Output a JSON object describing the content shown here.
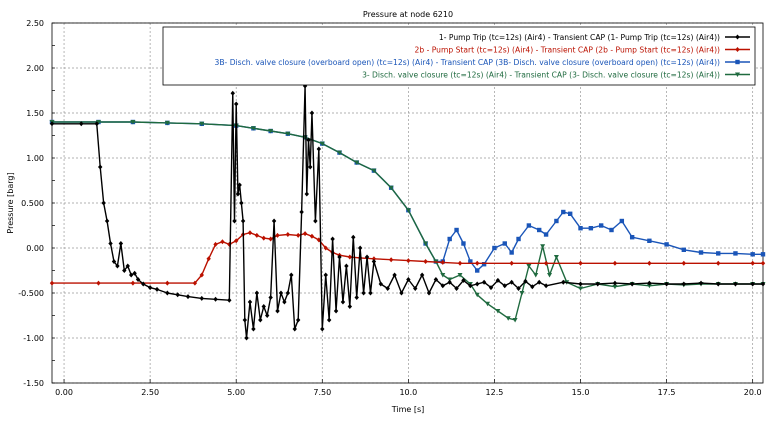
{
  "chart_data": {
    "type": "line",
    "title": "Pressure at node 6210",
    "xlabel": "Time [s]",
    "ylabel": "Pressure [barg]",
    "xlim": [
      -0.35,
      20.3
    ],
    "ylim": [
      -1.5,
      2.5
    ],
    "x_ticks": [
      0,
      2.5,
      5,
      7.5,
      10,
      12.5,
      15,
      17.5,
      20
    ],
    "x_tick_labels": [
      "0.00",
      "2.50",
      "5.00",
      "7.50",
      "10.0",
      "12.5",
      "15.0",
      "17.5",
      "20.0"
    ],
    "y_ticks": [
      2.5,
      2.0,
      1.5,
      1.0,
      0.5,
      0,
      -0.5,
      -1.0,
      -1.5
    ],
    "y_tick_labels": [
      "2.50",
      "2.00",
      "1.50",
      "1.00",
      "0.500",
      "0.00",
      "-0.500",
      "-1.00",
      "-1.50"
    ],
    "grid": true,
    "legend_position": "top-right",
    "series": [
      {
        "name": "1- Pump Trip (tc=12s) (Air4) - Transient CAP (1- Pump Trip (tc=12s) (Air4))",
        "color": "#000000",
        "marker": "diamond",
        "x": [
          -0.35,
          0.5,
          0.95,
          1.05,
          1.15,
          1.25,
          1.35,
          1.45,
          1.55,
          1.65,
          1.75,
          1.85,
          1.95,
          2.05,
          2.15,
          2.3,
          2.5,
          2.7,
          3.0,
          3.3,
          3.6,
          4.0,
          4.4,
          4.8,
          4.9,
          4.95,
          5.0,
          5.05,
          5.1,
          5.15,
          5.2,
          5.25,
          5.3,
          5.4,
          5.5,
          5.6,
          5.7,
          5.8,
          5.9,
          6.0,
          6.1,
          6.2,
          6.3,
          6.4,
          6.5,
          6.6,
          6.7,
          6.8,
          6.9,
          7.0,
          7.05,
          7.1,
          7.15,
          7.2,
          7.3,
          7.4,
          7.5,
          7.6,
          7.7,
          7.8,
          7.9,
          8.0,
          8.1,
          8.2,
          8.3,
          8.4,
          8.5,
          8.6,
          8.7,
          8.8,
          8.9,
          9.0,
          9.2,
          9.4,
          9.6,
          9.8,
          10.0,
          10.2,
          10.4,
          10.6,
          10.8,
          11.0,
          11.2,
          11.4,
          11.6,
          11.8,
          12.0,
          12.2,
          12.4,
          12.6,
          12.8,
          13.0,
          13.2,
          13.4,
          13.6,
          13.8,
          14.0,
          14.5,
          15.0,
          15.5,
          16.0,
          16.5,
          17.0,
          17.5,
          18.0,
          18.5,
          19.0,
          19.5,
          20.0,
          20.3
        ],
        "y": [
          1.38,
          1.38,
          1.38,
          0.9,
          0.5,
          0.3,
          0.05,
          -0.15,
          -0.2,
          0.05,
          -0.25,
          -0.2,
          -0.3,
          -0.28,
          -0.35,
          -0.4,
          -0.44,
          -0.46,
          -0.5,
          -0.52,
          -0.54,
          -0.56,
          -0.57,
          -0.58,
          1.72,
          0.3,
          1.6,
          0.6,
          0.7,
          0.5,
          0.3,
          -0.8,
          -1.0,
          -0.6,
          -0.9,
          -0.5,
          -0.8,
          -0.65,
          -0.75,
          -0.55,
          0.3,
          -0.7,
          -0.5,
          -0.6,
          -0.5,
          -0.3,
          -0.9,
          -0.8,
          0.4,
          1.8,
          0.6,
          1.2,
          0.9,
          1.5,
          0.3,
          1.1,
          -0.9,
          -0.3,
          -0.8,
          0.1,
          -0.7,
          -0.1,
          -0.6,
          -0.2,
          -0.65,
          0.12,
          -0.55,
          0.0,
          -0.5,
          -0.1,
          -0.5,
          -0.15,
          -0.4,
          -0.45,
          -0.3,
          -0.5,
          -0.35,
          -0.45,
          -0.3,
          -0.5,
          -0.35,
          -0.42,
          -0.38,
          -0.45,
          -0.36,
          -0.42,
          -0.4,
          -0.38,
          -0.44,
          -0.36,
          -0.42,
          -0.38,
          -0.45,
          -0.37,
          -0.43,
          -0.38,
          -0.42,
          -0.38,
          -0.4,
          -0.4,
          -0.39,
          -0.4,
          -0.39,
          -0.4,
          -0.4,
          -0.39,
          -0.4,
          -0.4,
          -0.4,
          -0.4
        ]
      },
      {
        "name": "2b - Pump Start (tc=12s) (Air4) - Transient CAP (2b - Pump Start (tc=12s) (Air4))",
        "color": "#bb1100",
        "marker": "diamond",
        "x": [
          -0.35,
          1.0,
          2.0,
          3.0,
          3.8,
          4.0,
          4.2,
          4.4,
          4.6,
          4.8,
          5.0,
          5.2,
          5.4,
          5.6,
          5.8,
          6.0,
          6.2,
          6.5,
          6.8,
          7.0,
          7.2,
          7.4,
          7.6,
          7.8,
          8.0,
          8.3,
          8.6,
          9.0,
          9.5,
          10.0,
          10.5,
          11.0,
          11.5,
          12.0,
          13.0,
          14.0,
          15.0,
          16.0,
          17.0,
          18.0,
          19.0,
          20.0,
          20.3
        ],
        "y": [
          -0.39,
          -0.39,
          -0.39,
          -0.39,
          -0.39,
          -0.3,
          -0.12,
          0.04,
          0.07,
          0.04,
          0.08,
          0.15,
          0.17,
          0.14,
          0.11,
          0.1,
          0.14,
          0.15,
          0.14,
          0.16,
          0.13,
          0.09,
          0.0,
          -0.05,
          -0.08,
          -0.1,
          -0.11,
          -0.12,
          -0.13,
          -0.14,
          -0.15,
          -0.16,
          -0.17,
          -0.17,
          -0.17,
          -0.17,
          -0.17,
          -0.17,
          -0.17,
          -0.17,
          -0.17,
          -0.17,
          -0.17
        ]
      },
      {
        "name": "3B- Disch. valve closure (overboard open) (tc=12s) (Air4) - Transient CAP (3B- Disch. valve closure (overboard open) (tc=12s) (Air4))",
        "color": "#1a55b8",
        "marker": "square",
        "x": [
          -0.35,
          1.0,
          2.0,
          3.0,
          4.0,
          5.0,
          5.5,
          6.0,
          6.5,
          7.0,
          7.5,
          8.0,
          8.5,
          9.0,
          9.5,
          10.0,
          10.5,
          10.8,
          11.0,
          11.2,
          11.4,
          11.6,
          11.8,
          12.0,
          12.2,
          12.5,
          12.8,
          13.0,
          13.2,
          13.5,
          13.8,
          14.0,
          14.3,
          14.5,
          14.7,
          15.0,
          15.3,
          15.6,
          15.9,
          16.2,
          16.5,
          17.0,
          17.5,
          18.0,
          18.5,
          19.0,
          19.5,
          20.0,
          20.3
        ],
        "y": [
          1.4,
          1.4,
          1.4,
          1.39,
          1.38,
          1.36,
          1.33,
          1.3,
          1.27,
          1.23,
          1.16,
          1.06,
          0.95,
          0.86,
          0.67,
          0.42,
          0.05,
          -0.15,
          -0.15,
          0.1,
          0.2,
          0.05,
          -0.15,
          -0.25,
          -0.18,
          0.0,
          0.05,
          -0.05,
          0.1,
          0.25,
          0.2,
          0.15,
          0.3,
          0.4,
          0.38,
          0.22,
          0.22,
          0.25,
          0.2,
          0.3,
          0.12,
          0.08,
          0.04,
          -0.02,
          -0.05,
          -0.06,
          -0.06,
          -0.07,
          -0.07
        ]
      },
      {
        "name": "3- Disch. valve closure (tc=12s) (Air4) - Transient CAP (3- Disch. valve closure (tc=12s) (Air4))",
        "color": "#1f6a3f",
        "marker": "triangle",
        "x": [
          -0.35,
          1.0,
          2.0,
          3.0,
          4.0,
          5.0,
          5.5,
          6.0,
          6.5,
          7.0,
          7.5,
          8.0,
          8.5,
          9.0,
          9.5,
          10.0,
          10.5,
          10.8,
          11.0,
          11.2,
          11.5,
          11.8,
          12.0,
          12.3,
          12.6,
          12.9,
          13.1,
          13.3,
          13.5,
          13.7,
          13.9,
          14.1,
          14.3,
          14.6,
          15.0,
          15.5,
          16.0,
          16.5,
          17.0,
          17.5,
          18.0,
          18.5,
          19.0,
          19.5,
          20.0,
          20.3
        ],
        "y": [
          1.4,
          1.4,
          1.4,
          1.39,
          1.38,
          1.36,
          1.33,
          1.3,
          1.27,
          1.23,
          1.16,
          1.06,
          0.95,
          0.86,
          0.67,
          0.42,
          0.05,
          -0.15,
          -0.3,
          -0.35,
          -0.3,
          -0.4,
          -0.52,
          -0.62,
          -0.7,
          -0.78,
          -0.8,
          -0.5,
          -0.2,
          -0.3,
          0.02,
          -0.3,
          -0.1,
          -0.38,
          -0.45,
          -0.4,
          -0.43,
          -0.4,
          -0.42,
          -0.4,
          -0.41,
          -0.4,
          -0.4,
          -0.4,
          -0.4,
          -0.4
        ]
      }
    ]
  }
}
